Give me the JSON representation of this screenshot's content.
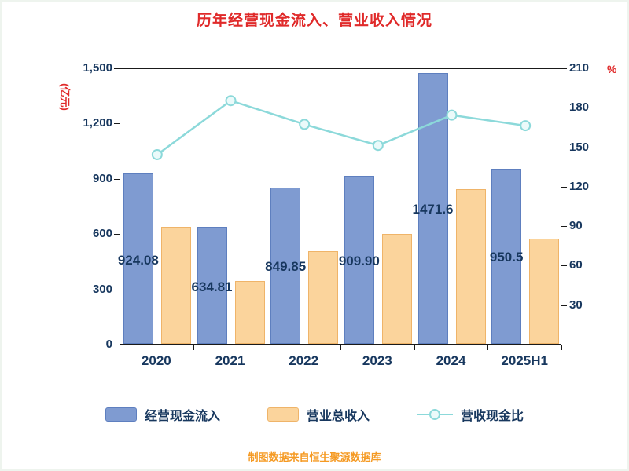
{
  "source_note": "制图数据来自恒生聚源数据库",
  "colors": {
    "title_red": "#E02A2A",
    "axis_text": "#17375E",
    "bar_blue": "#7F9BD1",
    "bar_blue_border": "#5E7FBF",
    "bar_orange": "#FBD49C",
    "bar_orange_border": "#EFB469",
    "line_teal": "#8CD9DA",
    "marker_fill": "#EBFAFA",
    "source_orange": "#F59A23"
  },
  "chart_data": {
    "type": "bar",
    "title": "历年经营现金流入、营业收入情况",
    "categories": [
      "2020",
      "2021",
      "2022",
      "2023",
      "2024",
      "2025H1"
    ],
    "series": [
      {
        "name": "经营现金流入",
        "type": "bar",
        "axis": "left",
        "values": [
          924.08,
          634.81,
          849.85,
          909.9,
          1471.6,
          950.5
        ],
        "labels": [
          "924.08",
          "634.81",
          "849.85",
          "909.90",
          "1471.6",
          "950.5"
        ]
      },
      {
        "name": "营业总收入",
        "type": "bar",
        "axis": "left",
        "values": [
          637,
          342,
          505,
          598,
          839,
          569
        ]
      },
      {
        "name": "营收现金比",
        "type": "line",
        "axis": "right",
        "values": [
          145,
          186,
          168,
          152,
          175,
          167
        ]
      }
    ],
    "left_axis": {
      "label": "(亿元)",
      "min": 0,
      "max": 1500,
      "ticks": [
        0,
        300,
        600,
        900,
        1200,
        1500
      ]
    },
    "right_axis": {
      "label": "%",
      "min": 0,
      "max": 210,
      "ticks": [
        30,
        60,
        90,
        120,
        150,
        180,
        210
      ]
    },
    "legend_position": "bottom",
    "grid": false
  }
}
